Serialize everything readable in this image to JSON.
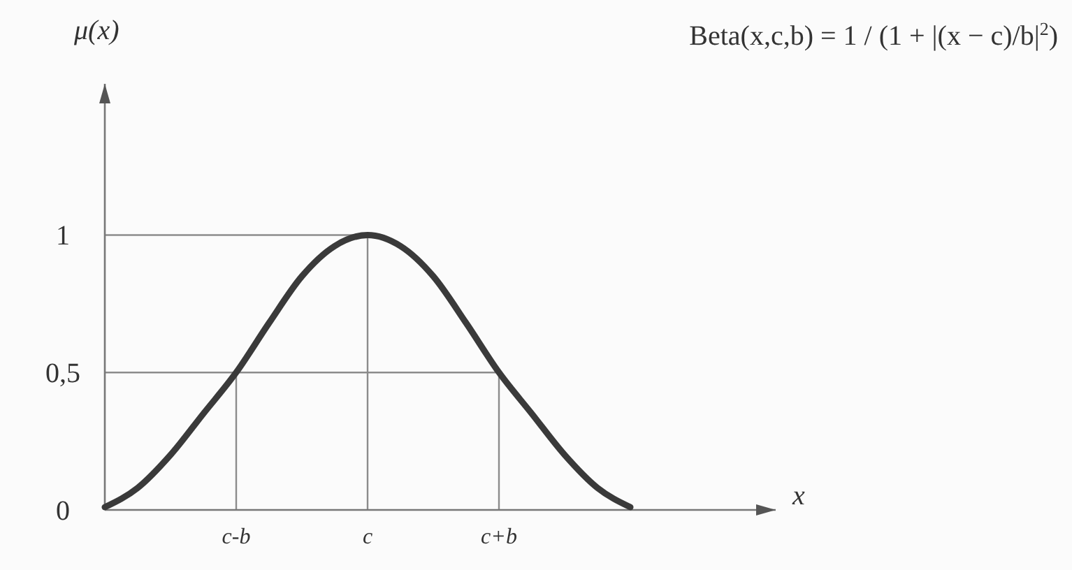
{
  "chart_data": {
    "type": "line",
    "xlabel": "x",
    "ylabel": "μ(x)",
    "annotations": [
      "Beta(x,c,b) = 1 / (1 + |(x − c)/b|$^{2}$)"
    ],
    "categories": [
      null,
      null,
      null,
      null,
      "c-b",
      null,
      null,
      null,
      "c",
      null,
      null,
      null,
      "c+b",
      null,
      null,
      null,
      null,
      null,
      null,
      null,
      null
    ],
    "ylim": [
      0,
      1.55
    ],
    "yticks": [
      0,
      {
        "value": 0.5,
        "label": "0,5"
      },
      1
    ],
    "grid": false,
    "marker": "none",
    "line_style": "solid",
    "ref_lines": [
      {
        "axis": "y",
        "value": 1,
        "color": "#8c8c8c"
      },
      {
        "axis": "y",
        "value": 0.5,
        "color": "#8c8c8c"
      },
      {
        "axis": "x",
        "value": "c-b",
        "color": "#8c8c8c"
      },
      {
        "axis": "x",
        "value": "c",
        "color": "#8c8c8c"
      },
      {
        "axis": "x",
        "value": "c+b",
        "color": "#8c8c8c"
      }
    ],
    "series": [
      {
        "color": "#3a3a3a",
        "values": [
          0.01,
          0.08,
          0.2,
          0.35,
          0.5,
          0.68,
          0.85,
          0.96,
          1,
          0.96,
          0.85,
          0.68,
          0.5,
          0.35,
          0.2,
          0.08,
          0.01,
          null,
          null,
          null,
          null
        ]
      }
    ]
  }
}
